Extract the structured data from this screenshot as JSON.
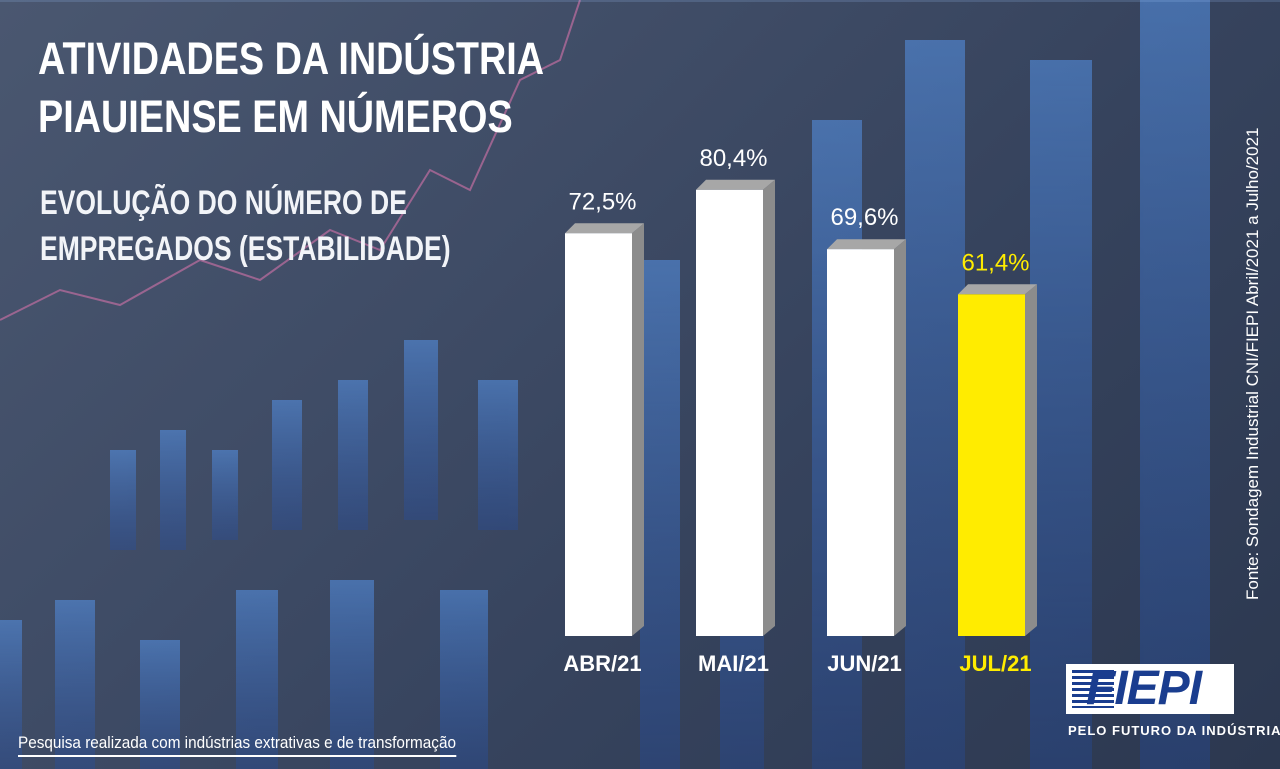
{
  "header": {
    "title_line1": "ATIVIDADES DA INDÚSTRIA",
    "title_line2": "PIAUIENSE EM NÚMEROS",
    "subtitle_line1": "EVOLUÇÃO DO NÚMERO DE",
    "subtitle_line2": "EMPREGADOS (ESTABILIDADE)"
  },
  "chart_data": {
    "type": "bar",
    "categories": [
      "ABR/21",
      "MAI/21",
      "JUN/21",
      "JUL/21"
    ],
    "values": [
      72.5,
      80.4,
      69.6,
      61.4
    ],
    "value_labels": [
      "72,5%",
      "80,4%",
      "69,6%",
      "61,4%"
    ],
    "highlight_index": 3,
    "ylim": [
      0,
      100
    ],
    "grid": false,
    "colors": {
      "bar": "#ffffff",
      "highlight": "#ffec00",
      "side": "#8c8c8c",
      "top": "#a7a7a7",
      "label": "#ffffff",
      "highlight_label": "#ffec00"
    }
  },
  "source": "Fonte: Sondagem Industrial CNI/FIEPI Abril/2021 a Julho/2021",
  "footnote": "Pesquisa realizada com indústrias extrativas e de transformação",
  "logo": {
    "name": "FIEPI",
    "tagline": "PELO FUTURO DA INDÚSTRIA",
    "colors": {
      "text": "#1a3d8f",
      "box": "#ffffff"
    }
  }
}
